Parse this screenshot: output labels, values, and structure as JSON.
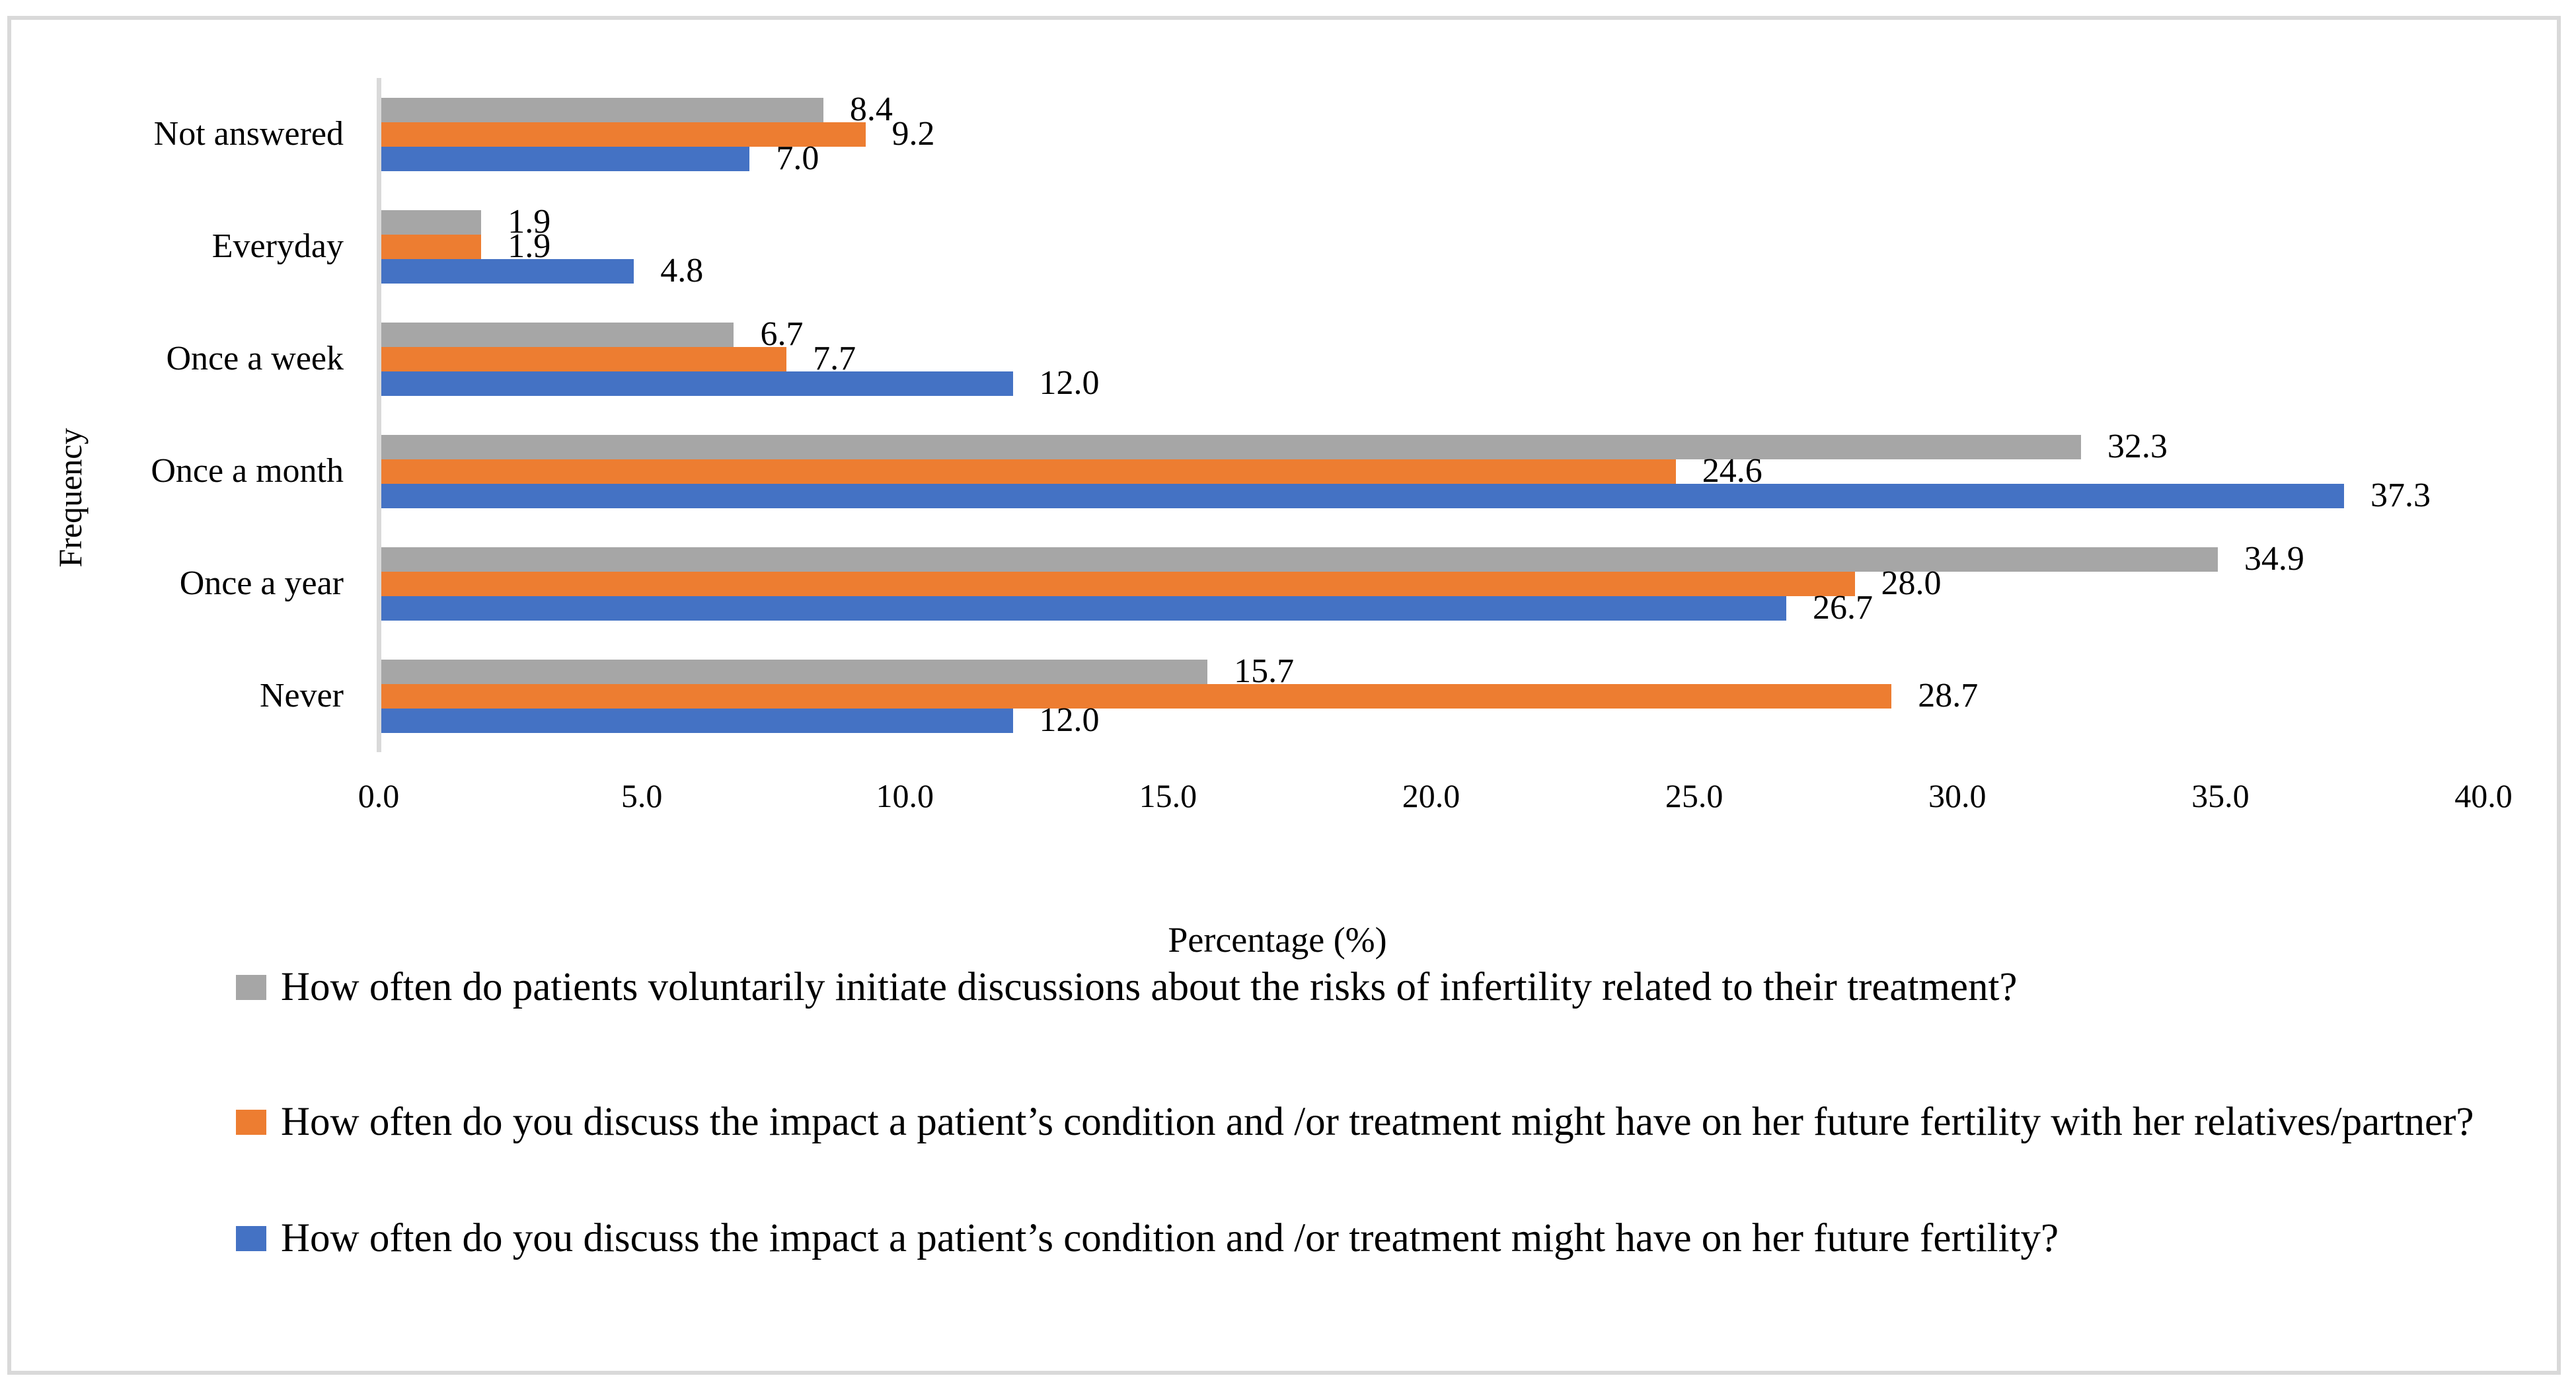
{
  "chart_data": {
    "type": "bar",
    "orientation": "horizontal",
    "title": "",
    "xlabel": "Percentage (%)",
    "ylabel": "Frequency",
    "xlim": [
      0,
      40
    ],
    "xticks": [
      "0.0",
      "5.0",
      "10.0",
      "15.0",
      "20.0",
      "25.0",
      "30.0",
      "35.0",
      "40.0"
    ],
    "grid": false,
    "legend_position": "bottom",
    "categories": [
      "Not answered",
      "Everyday",
      "Once a week",
      "Once a month",
      "Once a year",
      "Never"
    ],
    "series": [
      {
        "name": "How often do patients voluntarily initiate discussions about the risks of infertility related to their treatment?",
        "color": "#a6a6a6",
        "values": [
          8.4,
          1.9,
          6.7,
          32.3,
          34.9,
          15.7
        ]
      },
      {
        "name": "How often do you discuss the impact a patient’s condition and /or treatment might have on her future fertility with her relatives/partner?",
        "color": "#ed7d31",
        "values": [
          9.2,
          1.9,
          7.7,
          24.6,
          28.0,
          28.7
        ]
      },
      {
        "name": "How often do you discuss the impact a patient’s condition and /or treatment might have on her future fertility?",
        "color": "#4472c4",
        "values": [
          7.0,
          4.8,
          12.0,
          37.3,
          26.7,
          12.0
        ]
      }
    ],
    "value_label_format": "one_decimal",
    "colors": {
      "axis_line": "#d9d9d9",
      "frame_border": "#d9d9d9",
      "text": "#000000",
      "background": "#ffffff"
    }
  }
}
